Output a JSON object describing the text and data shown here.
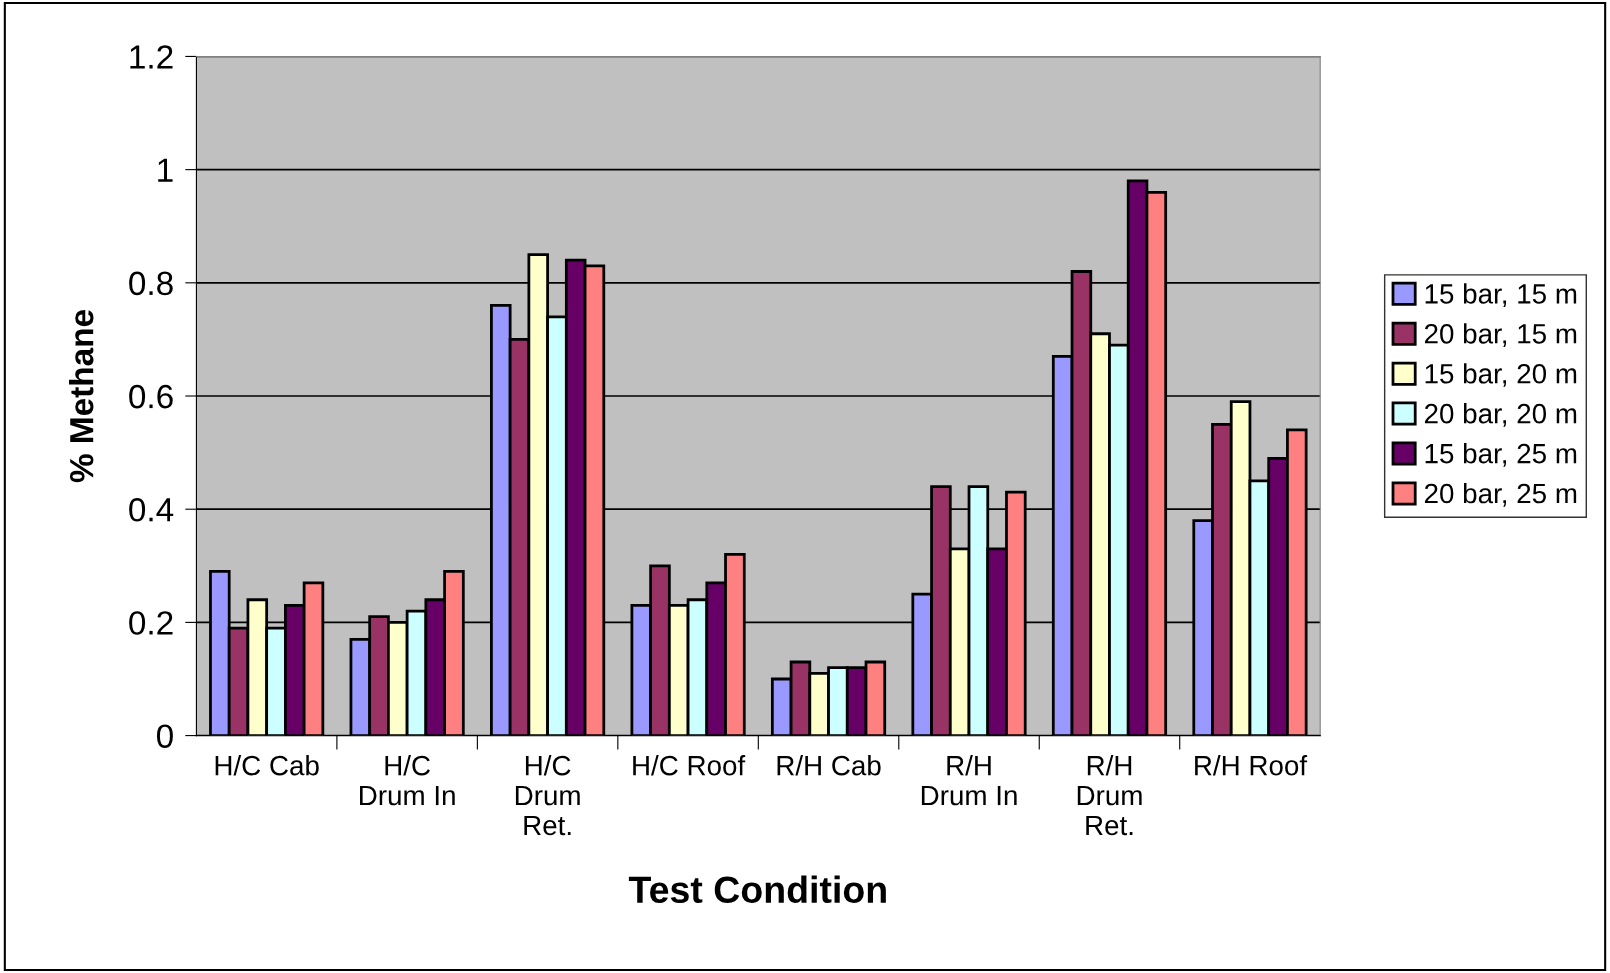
{
  "chart_data": {
    "type": "bar",
    "xlabel": "Test Condition",
    "ylabel": "% Methane",
    "categories": [
      "H/C Cab",
      "H/C\nDrum In",
      "H/C\nDrum\nRet.",
      "H/C Roof",
      "R/H Cab",
      "R/H\nDrum In",
      "R/H\nDrum\nRet.",
      "R/H Roof"
    ],
    "series": [
      {
        "name": "15 bar, 15 m",
        "color": "#9999ff",
        "values": [
          0.29,
          0.17,
          0.76,
          0.23,
          0.1,
          0.25,
          0.67,
          0.38
        ]
      },
      {
        "name": "20 bar, 15 m",
        "color": "#993366",
        "values": [
          0.19,
          0.21,
          0.7,
          0.3,
          0.13,
          0.44,
          0.82,
          0.55
        ]
      },
      {
        "name": "15 bar, 20 m",
        "color": "#ffffcc",
        "values": [
          0.24,
          0.2,
          0.85,
          0.23,
          0.11,
          0.33,
          0.71,
          0.59
        ]
      },
      {
        "name": "20 bar, 20 m",
        "color": "#ccffff",
        "values": [
          0.19,
          0.22,
          0.74,
          0.24,
          0.12,
          0.44,
          0.69,
          0.45
        ]
      },
      {
        "name": "15 bar, 25 m",
        "color": "#660066",
        "values": [
          0.23,
          0.24,
          0.84,
          0.27,
          0.12,
          0.33,
          0.98,
          0.49
        ]
      },
      {
        "name": "20 bar, 25 m",
        "color": "#ff8080",
        "values": [
          0.27,
          0.29,
          0.83,
          0.32,
          0.13,
          0.43,
          0.96,
          0.54
        ]
      }
    ],
    "ylim": [
      0,
      1.2
    ],
    "yticks": [
      0,
      0.2,
      0.4,
      0.6,
      0.8,
      {
        "value": 1.0,
        "label": "1"
      },
      1.2
    ],
    "grid": "y",
    "legend": "right"
  }
}
